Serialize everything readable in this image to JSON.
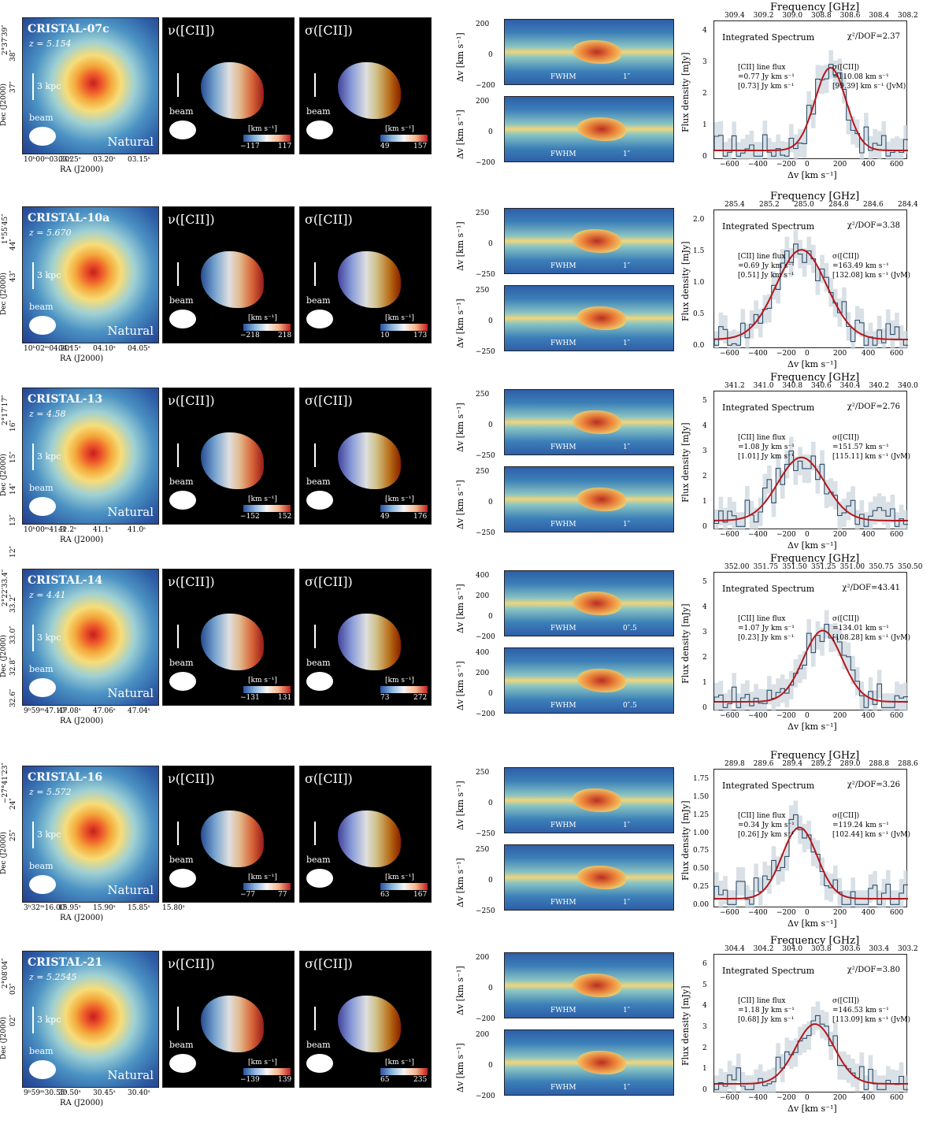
{
  "common": {
    "v_title": "ν([CII])",
    "s_title": "σ([CII])",
    "beam": "beam",
    "natural": "Natural",
    "kpc": "3 kpc",
    "cbar_unit": "[km s⁻¹]",
    "ra_label": "RA (J2000)",
    "dec_label": "Dec (J2000)",
    "pv_ylabel": "Δv [km s⁻¹]",
    "fwhm": "FWHM",
    "spec_title": "Integrated Spectrum",
    "freq_label": "Frequency [GHz]",
    "spec_ylabel": "Flux density [mJy]",
    "spec_xlabel": "Δv [km s⁻¹]",
    "line_flux_label": "[CII] line flux",
    "sigma_label": "σ([CII])",
    "vel_ticks": [
      "−600",
      "−400",
      "−200",
      "0",
      "200",
      "400",
      "600"
    ]
  },
  "rows": [
    {
      "name": "CRISTAL-07c",
      "z": "z = 5.154",
      "dec_top": "2°37′39″",
      "dec_ticks": [
        "38″",
        "37″"
      ],
      "ra_ticks": [
        "10ʰ00ᵐ03.30ˢ",
        "03.25ˢ",
        "03.20ˢ",
        "03.15ˢ"
      ],
      "v_min": "−117",
      "v_max": "117",
      "s_min": "49",
      "s_max": "157",
      "pv_yticks": [
        "200",
        "0",
        "−200"
      ],
      "pv_scale": "1″",
      "freq_ticks": [
        "309.4",
        "309.2",
        "309.0",
        "308.8",
        "308.6",
        "308.4",
        "308.2"
      ],
      "chi2": "χ²/DOF=2.37",
      "flux": "=0.77 Jy km s⁻¹",
      "flux_jvm": "[0.73] Jy km s⁻¹",
      "sigma": "=110.08 km s⁻¹",
      "sigma_jvm": "[99.39] km s⁻¹ (JvM)",
      "spec_yticks": [
        "4",
        "3",
        "2",
        "1",
        "0"
      ]
    },
    {
      "name": "CRISTAL-10a",
      "z": "z = 5.670",
      "dec_top": "1°55′45″",
      "dec_ticks": [
        "44″",
        "43″"
      ],
      "ra_ticks": [
        "10ʰ02ᵐ04.20ˢ",
        "04.15ˢ",
        "04.10ˢ",
        "04.05ˢ"
      ],
      "v_min": "−218",
      "v_max": "218",
      "s_min": "10",
      "s_max": "173",
      "pv_yticks": [
        "250",
        "0",
        "−250"
      ],
      "pv_scale": "1″",
      "freq_ticks": [
        "285.4",
        "285.2",
        "285.0",
        "284.8",
        "284.6",
        "284.4"
      ],
      "chi2": "χ²/DOF=3.38",
      "flux": "=0.69 Jy km s⁻¹",
      "flux_jvm": "[0.51] Jy km s⁻¹",
      "sigma": "=163.49 km s⁻¹",
      "sigma_jvm": "[132.08] km s⁻¹ (JvM)",
      "spec_yticks": [
        "2.0",
        "1.5",
        "1.0",
        "0.5",
        "0.0"
      ]
    },
    {
      "name": "CRISTAL-13",
      "z": "z = 4.58",
      "dec_top": "2°17′17″",
      "dec_ticks": [
        "16″",
        "15″",
        "14″",
        "13″",
        "12″"
      ],
      "ra_ticks": [
        "10ʰ00ᵐ41.3ˢ",
        "41.2ˢ",
        "41.1ˢ",
        "41.0ˢ"
      ],
      "v_min": "−152",
      "v_max": "152",
      "s_min": "49",
      "s_max": "176",
      "pv_yticks": [
        "250",
        "0",
        "−250"
      ],
      "pv_scale": "1″",
      "freq_ticks": [
        "341.2",
        "341.0",
        "340.8",
        "340.6",
        "340.4",
        "340.2",
        "340.0"
      ],
      "chi2": "χ²/DOF=2.76",
      "flux": "=1.08 Jy km s⁻¹",
      "flux_jvm": "[1.01] Jy km s⁻¹",
      "sigma": "=151.57 km s⁻¹",
      "sigma_jvm": "[115.11] km s⁻¹ (JvM)",
      "spec_yticks": [
        "5",
        "4",
        "3",
        "2",
        "1",
        "0"
      ]
    },
    {
      "name": "CRISTAL-14",
      "z": "z = 4.41",
      "dec_top": "2°22′33.4″",
      "dec_ticks": [
        "33.2″",
        "33.0″",
        "32.8″",
        "32.6″"
      ],
      "ra_ticks": [
        "9ʰ59ᵐ47.10ˢ",
        "47.08ˢ",
        "47.06ˢ",
        "47.04ˢ"
      ],
      "v_min": "−131",
      "v_max": "131",
      "s_min": "73",
      "s_max": "272",
      "pv_yticks": [
        "400",
        "200",
        "0",
        "−200"
      ],
      "pv_scale": "0″.5",
      "freq_ticks": [
        "352.00",
        "351.75",
        "351.50",
        "351.25",
        "351.00",
        "350.75",
        "350.50"
      ],
      "chi2": "χ²/DOF=43.41",
      "flux": "=1.07 Jy km s⁻¹",
      "flux_jvm": "[0.23] Jy km s⁻¹",
      "sigma": "=134.01 km s⁻¹",
      "sigma_jvm": "[108.28] km s⁻¹ (JvM)",
      "spec_yticks": [
        "5",
        "4",
        "3",
        "2",
        "1",
        "0"
      ]
    },
    {
      "name": "CRISTAL-16",
      "z": "z = 5.572",
      "dec_top": "−27°41′23″",
      "dec_ticks": [
        "24″",
        "25″"
      ],
      "ra_ticks": [
        "3ʰ32ᵐ16.00ˢ",
        "15.95ˢ",
        "15.90ˢ",
        "15.85ˢ",
        "15.80ˢ"
      ],
      "v_min": "−77",
      "v_max": "77",
      "s_min": "63",
      "s_max": "167",
      "pv_yticks": [
        "250",
        "0",
        "−250"
      ],
      "pv_scale": "1″",
      "freq_ticks": [
        "289.8",
        "289.6",
        "289.4",
        "289.2",
        "289.0",
        "288.8",
        "288.6"
      ],
      "chi2": "χ²/DOF=3.26",
      "flux": "=0.34 Jy km s⁻¹",
      "flux_jvm": "[0.26] Jy km s⁻¹",
      "sigma": "=119.24 km s⁻¹",
      "sigma_jvm": "[102.44] km s⁻¹ (JvM)",
      "spec_yticks": [
        "1.75",
        "1.50",
        "1.25",
        "1.00",
        "0.75",
        "0.50",
        "0.25",
        "0.00"
      ]
    },
    {
      "name": "CRISTAL-21",
      "z": "z = 5.2545",
      "dec_top": "2°08′04″",
      "dec_ticks": [
        "03″",
        "02″"
      ],
      "ra_ticks": [
        "9ʰ59ᵐ30.55ˢ",
        "30.50ˢ",
        "30.45ˢ",
        "30.40ˢ"
      ],
      "v_min": "−139",
      "v_max": "139",
      "s_min": "65",
      "s_max": "235",
      "pv_yticks": [
        "200",
        "0",
        "−200"
      ],
      "pv_scale": "1″",
      "freq_ticks": [
        "304.4",
        "304.2",
        "304.0",
        "303.8",
        "303.6",
        "303.4",
        "303.2"
      ],
      "chi2": "χ²/DOF=3.80",
      "flux": "=1.18 Jy km s⁻¹",
      "flux_jvm": "[0.68] Jy km s⁻¹",
      "sigma": "=146.53 km s⁻¹",
      "sigma_jvm": "[113.09] km s⁻¹ (JvM)",
      "spec_yticks": [
        "6",
        "5",
        "4",
        "3",
        "2",
        "1",
        "0"
      ]
    }
  ]
}
